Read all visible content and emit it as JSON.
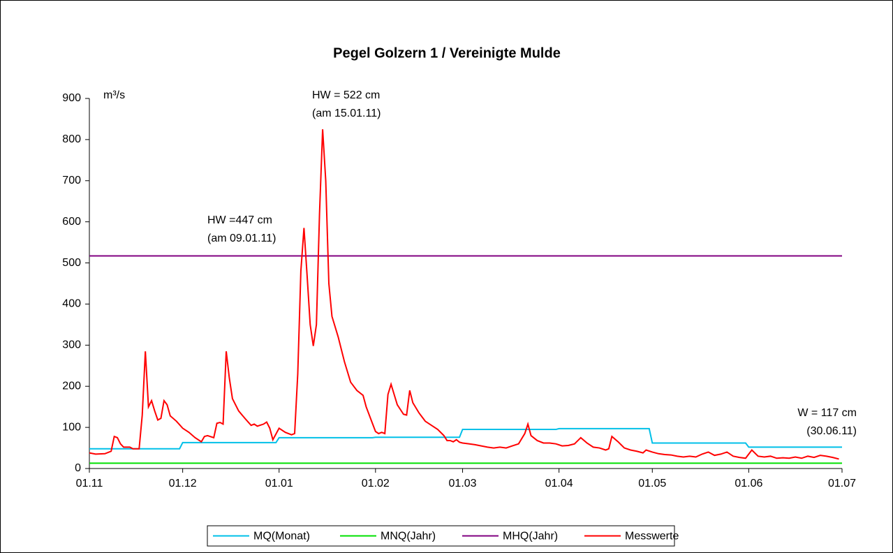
{
  "chart_data": {
    "type": "line",
    "title": "Pegel Golzern 1 / Vereinigte Mulde",
    "y_label": "m³/s",
    "ylim": [
      0,
      900
    ],
    "yticks": [
      0,
      100,
      200,
      300,
      400,
      500,
      600,
      700,
      800,
      900
    ],
    "xlim": [
      "01.11",
      "01.07"
    ],
    "xticks": [
      "01.11",
      "01.12",
      "01.01",
      "01.02",
      "01.03",
      "01.04",
      "01.05",
      "01.06",
      "01.07"
    ],
    "annotations": [
      {
        "lines": [
          "HW = 522 cm",
          "(am 15.01.11)"
        ]
      },
      {
        "lines": [
          "HW =447 cm",
          "(am 09.01.11)"
        ]
      },
      {
        "lines": [
          "W = 117 cm",
          "(30.06.11)"
        ]
      }
    ],
    "legend": "bottom",
    "series": [
      {
        "name": "MQ(Monat)",
        "color": "#00c0e8",
        "x": [
          "01.11",
          "30.11",
          "01.12",
          "31.12",
          "01.01",
          "31.01",
          "01.02",
          "28.02",
          "01.03",
          "31.03",
          "01.04",
          "30.04",
          "01.05",
          "31.05",
          "01.06",
          "01.07"
        ],
        "values": [
          48,
          48,
          63,
          63,
          75,
          75,
          76,
          76,
          95,
          95,
          97,
          97,
          62,
          62,
          52,
          52
        ]
      },
      {
        "name": "MNQ(Jahr)",
        "color": "#00e000",
        "x": [
          "01.11",
          "01.07"
        ],
        "values": [
          13,
          13
        ]
      },
      {
        "name": "MHQ(Jahr)",
        "color": "#800080",
        "x": [
          "01.11",
          "01.07"
        ],
        "values": [
          517,
          517
        ]
      },
      {
        "name": "Messwerte",
        "color": "#ff0000",
        "x": [
          "01.11",
          "03.11",
          "06.11",
          "08.11",
          "09.11",
          "10.11",
          "11.11",
          "12.11",
          "14.11",
          "15.11",
          "17.11",
          "18.11",
          "19.11",
          "20.11",
          "21.11",
          "22.11",
          "23.11",
          "24.11",
          "25.11",
          "26.11",
          "27.11",
          "29.11",
          "01.12",
          "03.12",
          "05.12",
          "07.12",
          "08.12",
          "09.12",
          "11.12",
          "12.12",
          "13.12",
          "14.12",
          "15.12",
          "16.12",
          "17.12",
          "19.12",
          "21.12",
          "23.12",
          "24.12",
          "25.12",
          "27.12",
          "28.12",
          "29.12",
          "30.12",
          "01.01",
          "03.01",
          "05.01",
          "06.01",
          "07.01",
          "08.01",
          "09.01",
          "10.01",
          "11.01",
          "12.01",
          "13.01",
          "14.01",
          "15.01",
          "16.01",
          "17.01",
          "18.01",
          "20.01",
          "22.01",
          "24.01",
          "26.01",
          "28.01",
          "29.01",
          "31.01",
          "01.02",
          "02.02",
          "03.02",
          "04.02",
          "05.02",
          "06.02",
          "07.02",
          "08.02",
          "10.02",
          "11.02",
          "12.02",
          "13.02",
          "15.02",
          "17.02",
          "19.02",
          "21.02",
          "23.02",
          "24.02",
          "25.02",
          "26.02",
          "27.02",
          "28.02",
          "01.03",
          "03.03",
          "05.03",
          "07.03",
          "09.03",
          "11.03",
          "13.03",
          "15.03",
          "17.03",
          "19.03",
          "21.03",
          "22.03",
          "23.03",
          "25.03",
          "27.03",
          "29.03",
          "31.03",
          "02.04",
          "04.04",
          "06.04",
          "08.04",
          "10.04",
          "12.04",
          "14.04",
          "16.04",
          "17.04",
          "18.04",
          "20.04",
          "22.04",
          "24.04",
          "26.04",
          "28.04",
          "29.04",
          "01.05",
          "03.05",
          "05.05",
          "07.05",
          "09.05",
          "11.05",
          "13.05",
          "15.05",
          "17.05",
          "19.05",
          "21.05",
          "23.05",
          "25.05",
          "27.05",
          "29.05",
          "31.05",
          "02.06",
          "04.06",
          "06.06",
          "08.06",
          "10.06",
          "12.06",
          "14.06",
          "16.06",
          "18.06",
          "20.06",
          "22.06",
          "24.06",
          "26.06",
          "28.06",
          "30.06"
        ],
        "values": [
          38,
          35,
          36,
          42,
          78,
          75,
          60,
          52,
          52,
          48,
          48,
          130,
          285,
          150,
          165,
          140,
          118,
          122,
          165,
          155,
          128,
          115,
          98,
          88,
          75,
          65,
          78,
          80,
          75,
          110,
          112,
          108,
          285,
          220,
          170,
          140,
          122,
          105,
          108,
          103,
          108,
          113,
          98,
          70,
          98,
          88,
          82,
          85,
          230,
          480,
          585,
          470,
          350,
          298,
          350,
          620,
          825,
          700,
          450,
          370,
          320,
          260,
          210,
          190,
          178,
          150,
          110,
          90,
          85,
          88,
          85,
          180,
          205,
          180,
          155,
          132,
          130,
          190,
          160,
          135,
          115,
          105,
          95,
          80,
          68,
          68,
          65,
          70,
          64,
          62,
          60,
          58,
          55,
          52,
          50,
          52,
          50,
          55,
          60,
          85,
          108,
          80,
          68,
          62,
          62,
          60,
          55,
          56,
          60,
          75,
          62,
          52,
          50,
          45,
          48,
          78,
          65,
          50,
          45,
          42,
          38,
          45,
          40,
          36,
          34,
          33,
          30,
          28,
          30,
          28,
          35,
          40,
          32,
          35,
          40,
          30,
          27,
          25,
          45,
          30,
          28,
          30,
          25,
          26,
          25,
          28,
          25,
          30,
          27,
          32,
          30,
          27,
          23
        ]
      }
    ]
  }
}
